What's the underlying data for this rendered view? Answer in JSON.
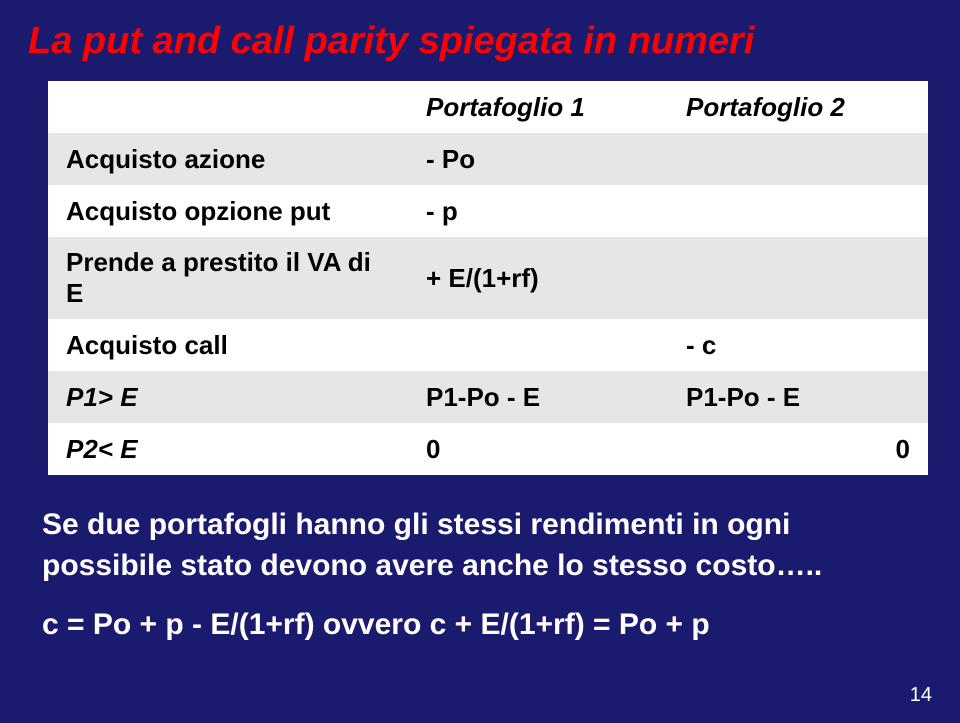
{
  "title": "La put and call parity spiegata in numeri",
  "table": {
    "header": {
      "c1": "",
      "c2": "Portafoglio 1",
      "c3": "Portafoglio 2"
    },
    "rows": [
      {
        "c1": "Acquisto azione",
        "c2": "- Po",
        "c3": ""
      },
      {
        "c1": "Acquisto opzione put",
        "c2": "- p",
        "c3": ""
      },
      {
        "c1": "Prende a prestito il VA di E",
        "c2": "+ E/(1+rf)",
        "c3": ""
      },
      {
        "c1": "Acquisto call",
        "c2": "",
        "c3": "- c"
      },
      {
        "c1": "P1> E",
        "c2": "P1-Po - E",
        "c3": "P1-Po - E"
      },
      {
        "c1": "P2< E",
        "c2": "0",
        "c3": "0"
      }
    ]
  },
  "summary": "Se due portafogli hanno gli stessi rendimenti in ogni possibile stato devono avere anche lo stesso costo…..",
  "formula": "c = Po + p - E/(1+rf)    ovvero       c + E/(1+rf) = Po + p",
  "pagenum": "14",
  "colors": {
    "background": "#1a1a6e",
    "title": "#ff0000",
    "text": "#ffffff",
    "table_bg": "#ffffff",
    "table_alt": "#e6e6e6"
  }
}
